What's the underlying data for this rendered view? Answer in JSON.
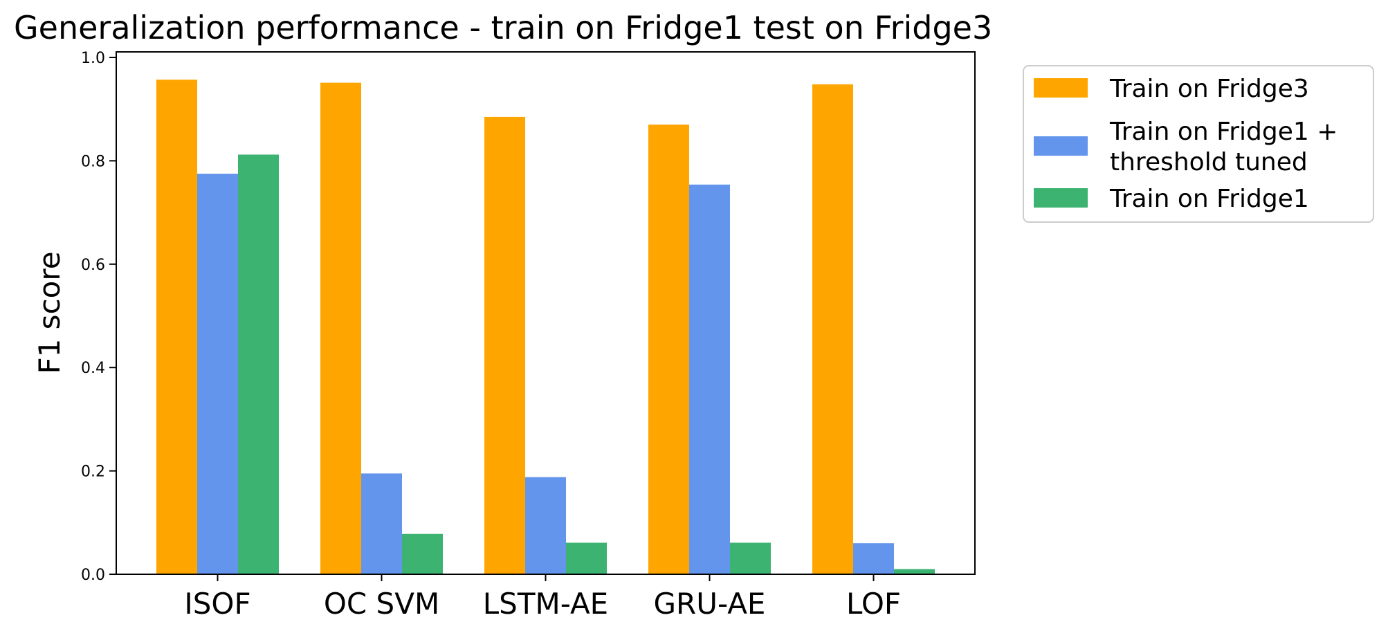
{
  "chart_data": {
    "type": "bar",
    "title": "Generalization performance - train on Fridge1 test on Fridge3",
    "xlabel": "",
    "ylabel": "F1 score",
    "categories": [
      "ISOF",
      "OC SVM",
      "LSTM-AE",
      "GRU-AE",
      "LOF"
    ],
    "ylim": [
      0,
      1.0
    ],
    "yticks": [
      "0.0",
      "0.2",
      "0.4",
      "0.6",
      "0.8",
      "1.0"
    ],
    "grid": false,
    "legend_position": "outside-top-right",
    "series": [
      {
        "name": "Train on Fridge3",
        "legend_lines": [
          "Train on Fridge3"
        ],
        "color": "#FFA500",
        "values": [
          0.957,
          0.951,
          0.885,
          0.87,
          0.948
        ]
      },
      {
        "name": "Train on Fridge1 + threshold tuned",
        "legend_lines": [
          "Train on Fridge1 +",
          "threshold tuned"
        ],
        "color": "#6495ED",
        "values": [
          0.775,
          0.195,
          0.188,
          0.754,
          0.06
        ]
      },
      {
        "name": "Train on Fridge1",
        "legend_lines": [
          "Train on Fridge1"
        ],
        "color": "#3CB371",
        "values": [
          0.812,
          0.078,
          0.061,
          0.061,
          0.01
        ]
      }
    ]
  }
}
